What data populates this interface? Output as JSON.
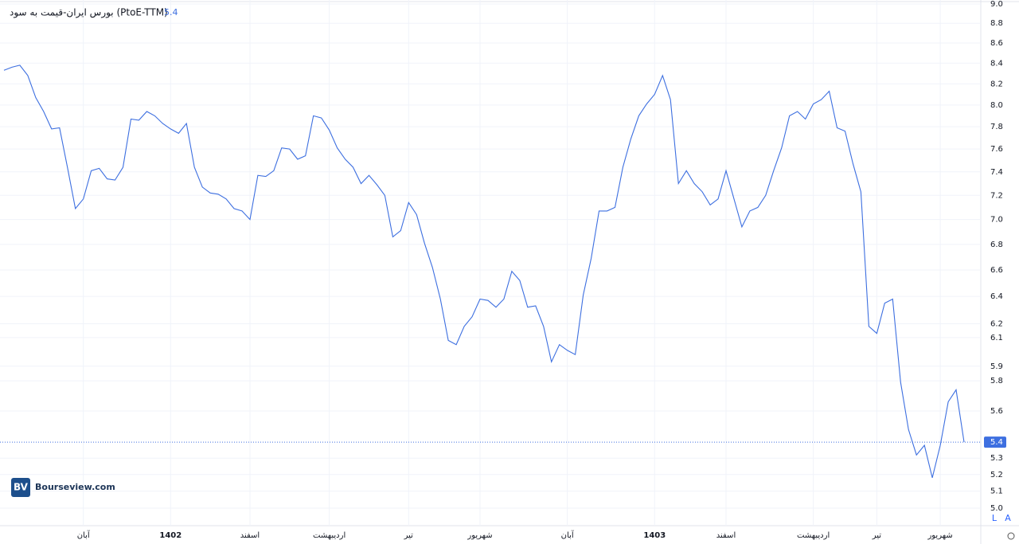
{
  "chart_data": {
    "type": "line",
    "title": "بورس ایران-قیمت به سود (PtoE-TTM)",
    "watermark": "Bourseview.com",
    "logo": "BV",
    "scale_buttons": [
      "L",
      "A"
    ],
    "log_scale": true,
    "grid": true,
    "categories": [
      null,
      null,
      null,
      null,
      null,
      null,
      null,
      null,
      null,
      null,
      "آبان",
      null,
      null,
      null,
      null,
      null,
      null,
      null,
      null,
      null,
      null,
      "1402",
      null,
      null,
      null,
      null,
      null,
      null,
      null,
      null,
      null,
      "اسفند",
      null,
      null,
      null,
      null,
      null,
      null,
      null,
      null,
      null,
      "اردیبهشت",
      null,
      null,
      null,
      null,
      null,
      null,
      null,
      null,
      null,
      "تیر",
      null,
      null,
      null,
      null,
      null,
      null,
      null,
      null,
      "شهریور",
      null,
      null,
      null,
      null,
      null,
      null,
      null,
      null,
      null,
      null,
      "آبان",
      null,
      null,
      null,
      null,
      null,
      null,
      null,
      null,
      null,
      null,
      "1403",
      null,
      null,
      null,
      null,
      null,
      null,
      null,
      null,
      "اسفند",
      null,
      null,
      null,
      null,
      null,
      null,
      null,
      null,
      null,
      null,
      "اردیبهشت",
      null,
      null,
      null,
      null,
      null,
      null,
      null,
      "تیر",
      null,
      null,
      null,
      null,
      null,
      null,
      null,
      "شهریور",
      null,
      null,
      null
    ],
    "series": [
      {
        "name": "PtoE-TTM",
        "color": "#3d6fe0",
        "values": [
          8.33,
          8.36,
          8.38,
          8.28,
          8.07,
          7.94,
          7.78,
          7.79,
          7.44,
          7.09,
          7.17,
          7.41,
          7.43,
          7.34,
          7.33,
          7.44,
          7.87,
          7.86,
          7.94,
          7.9,
          7.83,
          7.78,
          7.74,
          7.83,
          7.44,
          7.27,
          7.22,
          7.21,
          7.17,
          7.09,
          7.07,
          7.0,
          7.37,
          7.36,
          7.41,
          7.61,
          7.6,
          7.51,
          7.54,
          7.9,
          7.88,
          7.77,
          7.61,
          7.51,
          7.44,
          7.3,
          7.37,
          7.29,
          7.2,
          6.86,
          6.91,
          7.14,
          7.04,
          6.81,
          6.62,
          6.38,
          6.08,
          6.05,
          6.18,
          6.25,
          6.38,
          6.37,
          6.32,
          6.38,
          6.59,
          6.52,
          6.32,
          6.33,
          6.18,
          5.93,
          6.05,
          6.01,
          5.98,
          6.41,
          6.69,
          7.07,
          7.07,
          7.1,
          7.44,
          7.69,
          7.9,
          8.01,
          8.1,
          8.28,
          8.05,
          7.3,
          7.41,
          7.3,
          7.23,
          7.12,
          7.17,
          7.41,
          7.17,
          6.94,
          7.07,
          7.1,
          7.2,
          7.41,
          7.61,
          7.9,
          7.94,
          7.87,
          8.01,
          8.05,
          8.13,
          7.79,
          7.76,
          7.47,
          7.23,
          6.18,
          6.13,
          6.35,
          6.38,
          5.79,
          5.48,
          5.32,
          5.38,
          5.18,
          5.38,
          5.66,
          5.74,
          5.4
        ]
      }
    ],
    "ylim": [
      5,
      9
    ],
    "yticks": [
      {
        "value": 5,
        "label": "5.0"
      },
      5.1,
      5.2,
      5.3,
      5.6,
      5.8,
      5.9,
      6.1,
      6.2,
      6.4,
      6.6,
      6.8,
      {
        "value": 7,
        "label": "7.0"
      },
      7.2,
      7.4,
      7.6,
      7.8,
      {
        "value": 8,
        "label": "8.0"
      },
      8.2,
      8.4,
      8.6,
      8.8,
      {
        "value": 9,
        "label": "9.0"
      }
    ]
  }
}
